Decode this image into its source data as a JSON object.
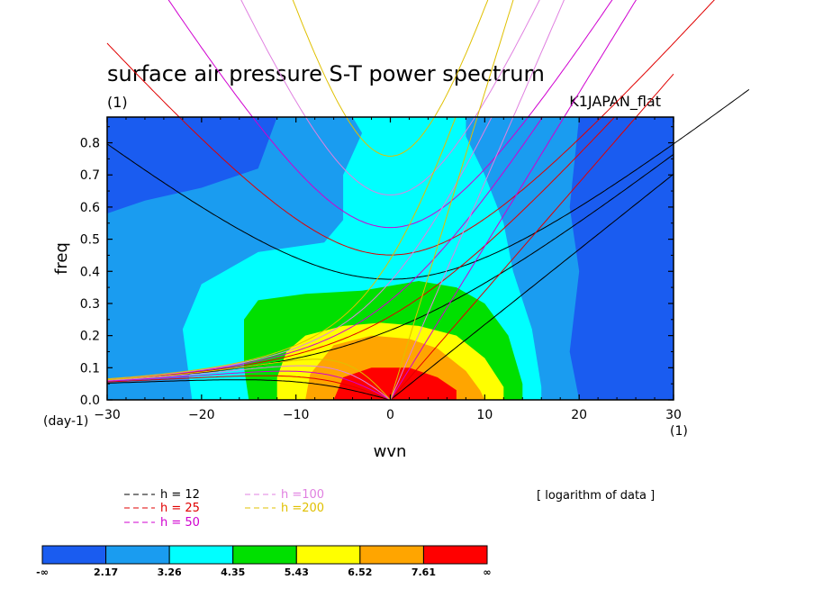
{
  "chart_data": {
    "type": "heatmap",
    "title": "surface air pressure S-T power spectrum",
    "subtitle_left": "(1)",
    "subtitle_right": "K1JAPAN_flat",
    "xlabel": "wvn",
    "ylabel": "freq",
    "x_unit": "(1)",
    "y_unit": "(day-1)",
    "xlim": [
      -30,
      30
    ],
    "ylim": [
      0,
      0.88
    ],
    "x_ticks": [
      -30,
      -20,
      -10,
      0,
      10,
      20,
      30
    ],
    "y_ticks": [
      0.0,
      0.1,
      0.2,
      0.3,
      0.4,
      0.5,
      0.6,
      0.7,
      0.8
    ],
    "y_tick_labels": [
      "0.0",
      "0.1",
      "0.2",
      "0.3",
      "0.4",
      "0.5",
      "0.6",
      "0.7",
      "0.8"
    ],
    "note": "[ logarithm of data ]",
    "colorbar": {
      "labels": [
        "-∞",
        "2.17",
        "3.26",
        "4.35",
        "5.43",
        "6.52",
        "7.61",
        "∞"
      ],
      "colors": [
        "#1a5cf0",
        "#1a9cf0",
        "#00ffff",
        "#00e000",
        "#ffff00",
        "#ffa500",
        "#ff0000"
      ]
    },
    "dispersion_curves": [
      {
        "label": "h = 12",
        "h": 12,
        "color": "#000000"
      },
      {
        "label": "h = 25",
        "h": 25,
        "color": "#e00000"
      },
      {
        "label": "h = 50",
        "h": 50,
        "color": "#d000d0"
      },
      {
        "label": "h =100",
        "h": 100,
        "color": "#e080e0"
      },
      {
        "label": "h =200",
        "h": 200,
        "color": "#e0c000"
      }
    ],
    "contour_levels": [
      {
        "level": "2.17",
        "color": "#1a9cf0",
        "points": [
          [
            -30,
            0.0
          ],
          [
            -30,
            0.58
          ],
          [
            -26,
            0.62
          ],
          [
            -20,
            0.66
          ],
          [
            -14,
            0.72
          ],
          [
            -12,
            0.88
          ],
          [
            20,
            0.88
          ],
          [
            19,
            0.6
          ],
          [
            20,
            0.4
          ],
          [
            19,
            0.15
          ],
          [
            20,
            0.0
          ]
        ]
      },
      {
        "level": "3.26",
        "color": "#00ffff",
        "points": [
          [
            -21,
            0.0
          ],
          [
            -22,
            0.22
          ],
          [
            -20,
            0.36
          ],
          [
            -14,
            0.46
          ],
          [
            -7,
            0.49
          ],
          [
            -5,
            0.56
          ],
          [
            -5,
            0.7
          ],
          [
            -3,
            0.83
          ],
          [
            -4,
            0.88
          ],
          [
            8,
            0.88
          ],
          [
            8,
            0.82
          ],
          [
            10,
            0.7
          ],
          [
            12,
            0.55
          ],
          [
            13,
            0.4
          ],
          [
            15,
            0.22
          ],
          [
            16,
            0.04
          ],
          [
            16,
            0.0
          ]
        ]
      },
      {
        "level": "4.35",
        "color": "#00e000",
        "points": [
          [
            -15,
            0.0
          ],
          [
            -15.5,
            0.1
          ],
          [
            -15.5,
            0.25
          ],
          [
            -14,
            0.31
          ],
          [
            -9,
            0.33
          ],
          [
            -3,
            0.34
          ],
          [
            3,
            0.37
          ],
          [
            7,
            0.35
          ],
          [
            10,
            0.3
          ],
          [
            12.5,
            0.2
          ],
          [
            14,
            0.05
          ],
          [
            14,
            0.0
          ]
        ]
      },
      {
        "level": "5.43",
        "color": "#ffff00",
        "points": [
          [
            -12,
            0.0
          ],
          [
            -12,
            0.07
          ],
          [
            -11,
            0.15
          ],
          [
            -9,
            0.2
          ],
          [
            -5,
            0.23
          ],
          [
            -1,
            0.24
          ],
          [
            3,
            0.23
          ],
          [
            7,
            0.2
          ],
          [
            10,
            0.13
          ],
          [
            12,
            0.04
          ],
          [
            12,
            0.0
          ]
        ]
      },
      {
        "level": "6.52",
        "color": "#ffa500",
        "points": [
          [
            -9,
            0.0
          ],
          [
            -8.5,
            0.08
          ],
          [
            -6,
            0.17
          ],
          [
            -2,
            0.2
          ],
          [
            2,
            0.19
          ],
          [
            5,
            0.16
          ],
          [
            8,
            0.09
          ],
          [
            9.5,
            0.03
          ],
          [
            10,
            0.0
          ]
        ]
      },
      {
        "level": "7.61",
        "color": "#ff0000",
        "points": [
          [
            -6,
            0.0
          ],
          [
            -5,
            0.07
          ],
          [
            -2,
            0.1
          ],
          [
            2,
            0.1
          ],
          [
            5,
            0.07
          ],
          [
            7,
            0.03
          ],
          [
            7,
            0.0
          ]
        ]
      }
    ]
  }
}
